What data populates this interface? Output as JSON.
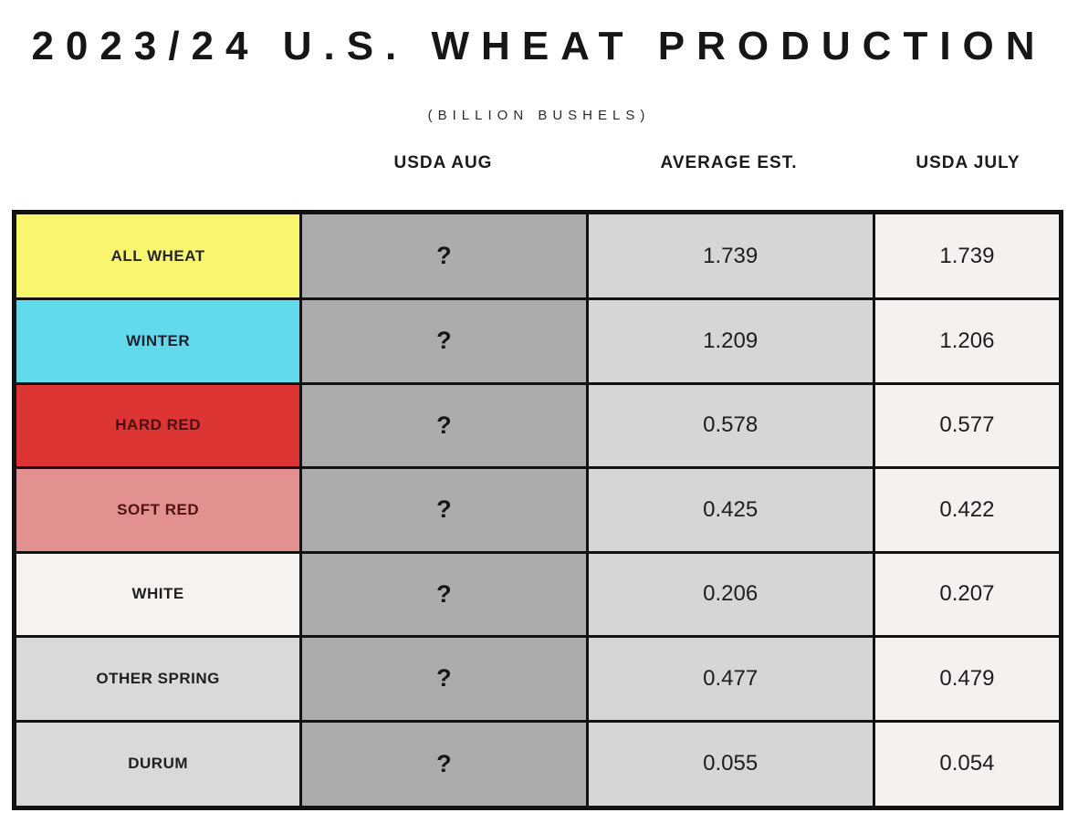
{
  "title": "2023/24 U.S. WHEAT PRODUCTION",
  "subtitle": "(BILLION BUSHELS)",
  "headers": {
    "usda_aug": "USDA AUG",
    "average_est": "AVERAGE EST.",
    "usda_july": "USDA JULY"
  },
  "column_colors": {
    "usda_aug_bg": "#acacac",
    "average_est_bg": "#d6d6d6",
    "usda_july_bg": "#f5f1ee"
  },
  "border_color": "#121212",
  "chart_data": {
    "type": "table",
    "title": "2023/24 U.S. WHEAT PRODUCTION",
    "subtitle": "(BILLION BUSHELS)",
    "columns": [
      "",
      "USDA AUG",
      "AVERAGE EST.",
      "USDA JULY"
    ],
    "rows": [
      {
        "label": "ALL WHEAT",
        "usda_aug": "?",
        "average_est": "1.739",
        "usda_july": "1.739",
        "row_color": "#f7f66e",
        "label_color": "#26262b"
      },
      {
        "label": "WINTER",
        "usda_aug": "?",
        "average_est": "1.209",
        "usda_july": "1.206",
        "row_color": "#63daec",
        "label_color": "#1d2230"
      },
      {
        "label": "HARD RED",
        "usda_aug": "?",
        "average_est": "0.578",
        "usda_july": "0.577",
        "row_color": "#dd3434",
        "label_color": "#491111"
      },
      {
        "label": "SOFT RED",
        "usda_aug": "?",
        "average_est": "0.425",
        "usda_july": "0.422",
        "row_color": "#e39090",
        "label_color": "#4c1414"
      },
      {
        "label": "WHITE",
        "usda_aug": "?",
        "average_est": "0.206",
        "usda_july": "0.207",
        "row_color": "#f6f2f0",
        "label_color": "#1f1f1f"
      },
      {
        "label": "OTHER SPRING",
        "usda_aug": "?",
        "average_est": "0.477",
        "usda_july": "0.479",
        "row_color": "#d9d9d9",
        "label_color": "#1f1f1f"
      },
      {
        "label": "DURUM",
        "usda_aug": "?",
        "average_est": "0.055",
        "usda_july": "0.054",
        "row_color": "#d9d9d9",
        "label_color": "#1f1f1f"
      }
    ]
  }
}
